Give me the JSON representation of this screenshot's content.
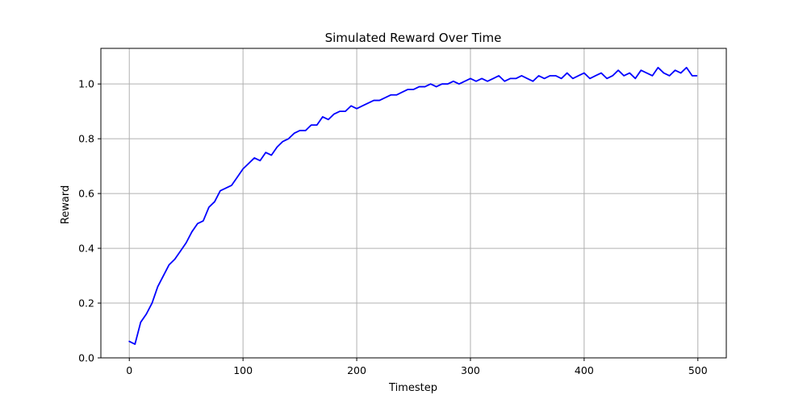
{
  "chart_data": {
    "type": "line",
    "title": "Simulated Reward Over Time",
    "xlabel": "Timestep",
    "ylabel": "Reward",
    "xlim": [
      -25,
      525
    ],
    "ylim": [
      0.0,
      1.13
    ],
    "xticks": [
      0,
      100,
      200,
      300,
      400,
      500
    ],
    "xtick_labels": [
      "0",
      "100",
      "200",
      "300",
      "400",
      "500"
    ],
    "yticks": [
      0.0,
      0.2,
      0.4,
      0.6,
      0.8,
      1.0
    ],
    "ytick_labels": [
      "0.0",
      "0.2",
      "0.4",
      "0.6",
      "0.8",
      "1.0"
    ],
    "grid": true,
    "line_color": "#0000ff",
    "series": [
      {
        "x": [
          0,
          5,
          10,
          15,
          20,
          25,
          30,
          35,
          40,
          45,
          50,
          55,
          60,
          65,
          70,
          75,
          80,
          85,
          90,
          95,
          100,
          105,
          110,
          115,
          120,
          125,
          130,
          135,
          140,
          145,
          150,
          155,
          160,
          165,
          170,
          175,
          180,
          185,
          190,
          195,
          200,
          205,
          210,
          215,
          220,
          225,
          230,
          235,
          240,
          245,
          250,
          255,
          260,
          265,
          270,
          275,
          280,
          285,
          290,
          295,
          300,
          305,
          310,
          315,
          320,
          325,
          330,
          335,
          340,
          345,
          350,
          355,
          360,
          365,
          370,
          375,
          380,
          385,
          390,
          395,
          400,
          405,
          410,
          415,
          420,
          425,
          430,
          435,
          440,
          445,
          450,
          455,
          460,
          465,
          470,
          475,
          480,
          485,
          490,
          495,
          499
        ],
        "y": [
          0.06,
          0.05,
          0.13,
          0.16,
          0.2,
          0.26,
          0.3,
          0.34,
          0.36,
          0.39,
          0.42,
          0.46,
          0.49,
          0.5,
          0.55,
          0.57,
          0.61,
          0.62,
          0.63,
          0.66,
          0.69,
          0.71,
          0.73,
          0.72,
          0.75,
          0.74,
          0.77,
          0.79,
          0.8,
          0.82,
          0.83,
          0.83,
          0.85,
          0.85,
          0.88,
          0.87,
          0.89,
          0.9,
          0.9,
          0.92,
          0.91,
          0.92,
          0.93,
          0.94,
          0.94,
          0.95,
          0.96,
          0.96,
          0.97,
          0.98,
          0.98,
          0.99,
          0.99,
          1.0,
          0.99,
          1.0,
          1.0,
          1.01,
          1.0,
          1.01,
          1.02,
          1.01,
          1.02,
          1.01,
          1.02,
          1.03,
          1.01,
          1.02,
          1.02,
          1.03,
          1.02,
          1.01,
          1.03,
          1.02,
          1.03,
          1.03,
          1.02,
          1.04,
          1.02,
          1.03,
          1.04,
          1.02,
          1.03,
          1.04,
          1.02,
          1.03,
          1.05,
          1.03,
          1.04,
          1.02,
          1.05,
          1.04,
          1.03,
          1.06,
          1.04,
          1.03,
          1.05,
          1.04,
          1.06,
          1.03,
          1.03
        ]
      }
    ]
  }
}
